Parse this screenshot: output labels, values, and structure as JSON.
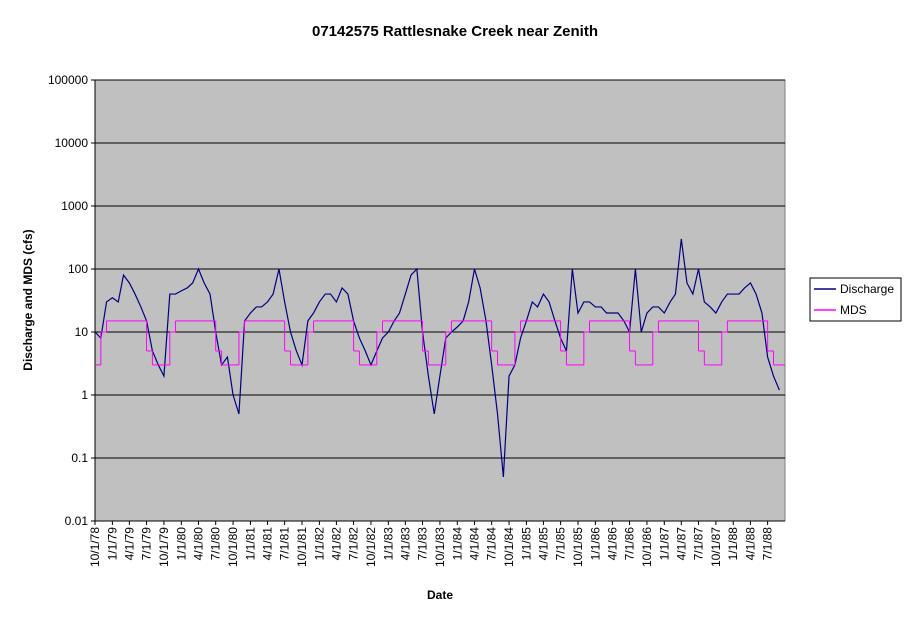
{
  "chart_data": {
    "type": "line",
    "title": "07142575 Rattlesnake Creek near Zenith",
    "x_label": "Date",
    "y_label": "Discharge and MDS (cfs)",
    "log_scale_y": true,
    "grid": true,
    "legend": "right",
    "xlim": [
      "10/1/78",
      "10/1/88"
    ],
    "ylim": [
      0.01,
      100000
    ],
    "yticks": [
      0.01,
      0.1,
      1,
      10,
      100,
      1000,
      10000,
      100000
    ],
    "xticks": [
      "10/1/78",
      "1/1/79",
      "4/1/79",
      "7/1/79",
      "10/1/79",
      "1/1/80",
      "4/1/80",
      "7/1/80",
      "10/1/80",
      "1/1/81",
      "4/1/81",
      "7/1/81",
      "10/1/81",
      "1/1/82",
      "4/1/82",
      "7/1/82",
      "10/1/82",
      "1/1/83",
      "4/1/83",
      "7/1/83",
      "10/1/83",
      "1/1/84",
      "4/1/84",
      "7/1/84",
      "10/1/84",
      "1/1/85",
      "4/1/85",
      "7/1/85",
      "10/1/85",
      "1/1/86",
      "4/1/86",
      "7/1/86",
      "10/1/86",
      "1/1/87",
      "4/1/87",
      "7/1/87",
      "10/1/87",
      "1/1/88",
      "4/1/88",
      "7/1/88"
    ],
    "x": [
      "10/1/78",
      "11/1/78",
      "12/1/78",
      "1/1/79",
      "2/1/79",
      "3/1/79",
      "4/1/79",
      "5/1/79",
      "6/1/79",
      "7/1/79",
      "8/1/79",
      "9/1/79",
      "10/1/79",
      "11/1/79",
      "12/1/79",
      "1/1/80",
      "2/1/80",
      "3/1/80",
      "4/1/80",
      "5/1/80",
      "6/1/80",
      "7/1/80",
      "8/1/80",
      "9/1/80",
      "10/1/80",
      "11/1/80",
      "12/1/80",
      "1/1/81",
      "2/1/81",
      "3/1/81",
      "4/1/81",
      "5/1/81",
      "6/1/81",
      "7/1/81",
      "8/1/81",
      "9/1/81",
      "10/1/81",
      "11/1/81",
      "12/1/81",
      "1/1/82",
      "2/1/82",
      "3/1/82",
      "4/1/82",
      "5/1/82",
      "6/1/82",
      "7/1/82",
      "8/1/82",
      "9/1/82",
      "10/1/82",
      "11/1/82",
      "12/1/82",
      "1/1/83",
      "2/1/83",
      "3/1/83",
      "4/1/83",
      "5/1/83",
      "6/1/83",
      "7/1/83",
      "8/1/83",
      "9/1/83",
      "10/1/83",
      "11/1/83",
      "12/1/83",
      "1/1/84",
      "2/1/84",
      "3/1/84",
      "4/1/84",
      "5/1/84",
      "6/1/84",
      "7/1/84",
      "8/1/84",
      "9/1/84",
      "10/1/84",
      "11/1/84",
      "12/1/84",
      "1/1/85",
      "2/1/85",
      "3/1/85",
      "4/1/85",
      "5/1/85",
      "6/1/85",
      "7/1/85",
      "8/1/85",
      "9/1/85",
      "10/1/85",
      "11/1/85",
      "12/1/85",
      "1/1/86",
      "2/1/86",
      "3/1/86",
      "4/1/86",
      "5/1/86",
      "6/1/86",
      "7/1/86",
      "8/1/86",
      "9/1/86",
      "10/1/86",
      "11/1/86",
      "12/1/86",
      "1/1/87",
      "2/1/87",
      "3/1/87",
      "4/1/87",
      "5/1/87",
      "6/1/87",
      "7/1/87",
      "8/1/87",
      "9/1/87",
      "10/1/87",
      "11/1/87",
      "12/1/87",
      "1/1/88",
      "2/1/88",
      "3/1/88",
      "4/1/88",
      "5/1/88",
      "6/1/88",
      "7/1/88",
      "8/1/88",
      "9/1/88"
    ],
    "series": [
      {
        "name": "Discharge",
        "color": "#000080",
        "values": [
          10,
          8,
          30,
          35,
          30,
          80,
          60,
          40,
          25,
          15,
          5,
          3,
          2,
          40,
          40,
          45,
          50,
          60,
          100,
          60,
          40,
          10,
          3,
          4,
          1,
          0.5,
          15,
          20,
          25,
          25,
          30,
          40,
          100,
          30,
          10,
          5,
          3,
          15,
          20,
          30,
          40,
          40,
          30,
          50,
          40,
          15,
          8,
          5,
          3,
          5,
          8,
          10,
          15,
          20,
          40,
          80,
          100,
          10,
          2,
          0.5,
          2,
          8,
          10,
          12,
          15,
          30,
          100,
          50,
          15,
          3,
          0.5,
          0.05,
          2,
          3,
          8,
          15,
          30,
          25,
          40,
          30,
          15,
          8,
          5,
          100,
          20,
          30,
          30,
          25,
          25,
          20,
          20,
          20,
          15,
          10,
          100,
          10,
          20,
          25,
          25,
          20,
          30,
          40,
          300,
          60,
          40,
          100,
          30,
          25,
          20,
          30,
          40,
          40,
          40,
          50,
          60,
          40,
          20,
          4,
          2,
          1.2
        ]
      },
      {
        "name": "MDS",
        "color": "#ff00ff",
        "step": true,
        "values": [
          3,
          10,
          15,
          15,
          15,
          15,
          15,
          15,
          15,
          5,
          3,
          3,
          3,
          10,
          15,
          15,
          15,
          15,
          15,
          15,
          15,
          5,
          3,
          3,
          3,
          10,
          15,
          15,
          15,
          15,
          15,
          15,
          15,
          5,
          3,
          3,
          3,
          10,
          15,
          15,
          15,
          15,
          15,
          15,
          15,
          5,
          3,
          3,
          3,
          10,
          15,
          15,
          15,
          15,
          15,
          15,
          15,
          5,
          3,
          3,
          3,
          10,
          15,
          15,
          15,
          15,
          15,
          15,
          15,
          5,
          3,
          3,
          3,
          10,
          15,
          15,
          15,
          15,
          15,
          15,
          15,
          5,
          3,
          3,
          3,
          10,
          15,
          15,
          15,
          15,
          15,
          15,
          15,
          5,
          3,
          3,
          3,
          10,
          15,
          15,
          15,
          15,
          15,
          15,
          15,
          5,
          3,
          3,
          3,
          10,
          15,
          15,
          15,
          15,
          15,
          15,
          15,
          5,
          3,
          3
        ]
      }
    ]
  }
}
